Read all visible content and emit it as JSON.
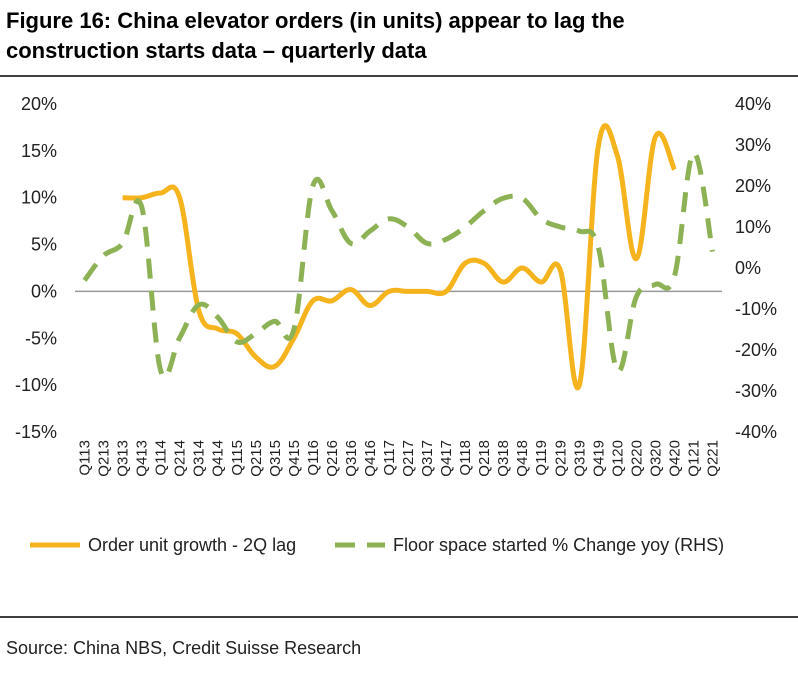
{
  "chart_data": {
    "type": "line",
    "title": "Figure 16: China elevator orders (in units) appear to lag the construction starts data – quarterly data",
    "source": "Source: China NBS, Credit Suisse Research",
    "categories": [
      "Q113",
      "Q213",
      "Q313",
      "Q413",
      "Q114",
      "Q214",
      "Q314",
      "Q414",
      "Q115",
      "Q215",
      "Q315",
      "Q415",
      "Q116",
      "Q216",
      "Q316",
      "Q416",
      "Q117",
      "Q217",
      "Q317",
      "Q417",
      "Q118",
      "Q218",
      "Q318",
      "Q418",
      "Q119",
      "Q219",
      "Q319",
      "Q419",
      "Q120",
      "Q220",
      "Q320",
      "Q420",
      "Q121",
      "Q221"
    ],
    "series": [
      {
        "name": "Order unit growth - 2Q lag",
        "color": "#f5b41e",
        "dashed": false,
        "axis": "y",
        "values": [
          null,
          null,
          10,
          10,
          10.5,
          10,
          -2,
          -4,
          -4.5,
          -7,
          -8,
          -5,
          -1,
          -1,
          0.2,
          -1.5,
          0,
          0,
          0,
          0,
          3,
          3,
          1,
          2.5,
          1,
          2.3,
          -10,
          15.5,
          14.5,
          3.5,
          16.5,
          13,
          null,
          null
        ]
      },
      {
        "name": "Floor space started % Change yoy (RHS)",
        "color": "#8db255",
        "dashed": true,
        "axis": "y2",
        "values": [
          -3,
          3,
          6,
          15,
          -25,
          -17,
          -9,
          -12,
          -18,
          -16,
          -13,
          -15,
          20,
          14,
          6,
          9,
          12,
          10,
          6,
          7,
          10,
          14,
          17,
          17,
          12,
          10,
          9,
          5,
          -25,
          -7,
          -4,
          -2,
          28,
          4
        ]
      }
    ],
    "ylim": [
      -15,
      20
    ],
    "yticks": [
      {
        "value": -15,
        "label": "-15%"
      },
      {
        "value": -10,
        "label": "-10%"
      },
      {
        "value": -5,
        "label": "-5%"
      },
      {
        "value": 0,
        "label": "0%"
      },
      {
        "value": 5,
        "label": "5%"
      },
      {
        "value": 10,
        "label": "10%"
      },
      {
        "value": 15,
        "label": "15%"
      },
      {
        "value": 20,
        "label": "20%"
      }
    ],
    "y2lim": [
      -40,
      40
    ],
    "y2ticks": [
      {
        "value": -40,
        "label": "-40%"
      },
      {
        "value": -30,
        "label": "-30%"
      },
      {
        "value": -20,
        "label": "-20%"
      },
      {
        "value": -10,
        "label": "-10%"
      },
      {
        "value": 0,
        "label": "0%"
      },
      {
        "value": 10,
        "label": "10%"
      },
      {
        "value": 20,
        "label": "20%"
      },
      {
        "value": 30,
        "label": "30%"
      },
      {
        "value": 40,
        "label": "40%"
      }
    ],
    "zero_line": true
  }
}
